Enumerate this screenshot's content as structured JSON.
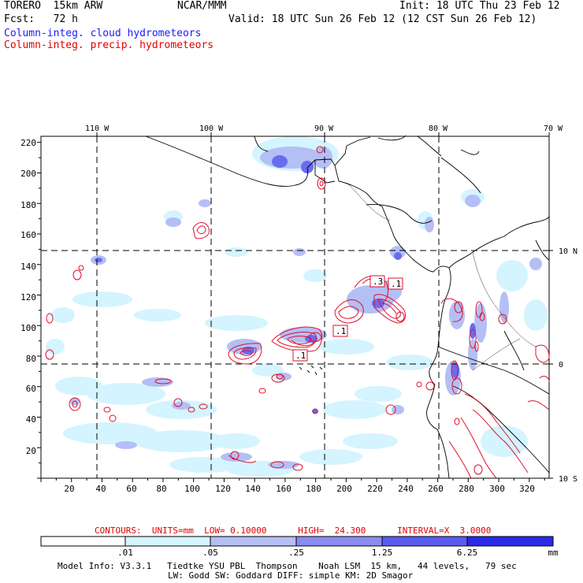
{
  "header": {
    "model": "TORERO  15km ARW",
    "center": "NCAR/MMM",
    "init": "Init: 18 UTC Thu 23 Feb 12",
    "fcst": "Fcst:   72 h",
    "valid": "Valid: 18 UTC Sun 26 Feb 12 (12 CST Sun 26 Feb 12)",
    "field_cloud": "Column-integ. cloud hydrometeors",
    "field_precip": "Column-integ. precip. hydrometeors"
  },
  "colors": {
    "cloud_text": "#1a1aff",
    "precip_text": "#e00000",
    "contour": "#e0102a",
    "shade_1": "#d4f4ff",
    "shade_2": "#b4bff5",
    "shade_3": "#8a8cf0",
    "shade_4": "#5a5cf0",
    "shade_5": "#2a2ae8"
  },
  "map": {
    "top_lon_labels": [
      "110 W",
      "100 W",
      "90 W",
      "80 W",
      "70 W"
    ],
    "right_lat_labels": [
      "10 N",
      "0",
      "10 S"
    ],
    "y_ticks": [
      "220",
      "200",
      "180",
      "160",
      "140",
      "120",
      "100",
      "80",
      "60",
      "40",
      "20"
    ],
    "x_ticks": [
      "20",
      "40",
      "60",
      "80",
      "100",
      "120",
      "140",
      "160",
      "180",
      "200",
      "220",
      "240",
      "260",
      "280",
      "300",
      "320"
    ],
    "contour_labels": [
      ".3",
      ".1",
      ".1",
      ".1"
    ]
  },
  "contour_info": {
    "text": "CONTOURS:  UNITS=mm  LOW= 0.10000      HIGH=  24.300      INTERVAL=X  3.0000"
  },
  "colorbar": {
    "labels": [
      ".01",
      ".05",
      ".25",
      "1.25",
      "6.25"
    ],
    "units": "mm"
  },
  "footer": {
    "line1": "Model Info: V3.3.1   Tiedtke YSU PBL  Thompson    Noah LSM  15 km,   44 levels,   79 sec",
    "line2": "LW: Godd SW: Goddard DIFF: simple KM: 2D Smagor"
  }
}
